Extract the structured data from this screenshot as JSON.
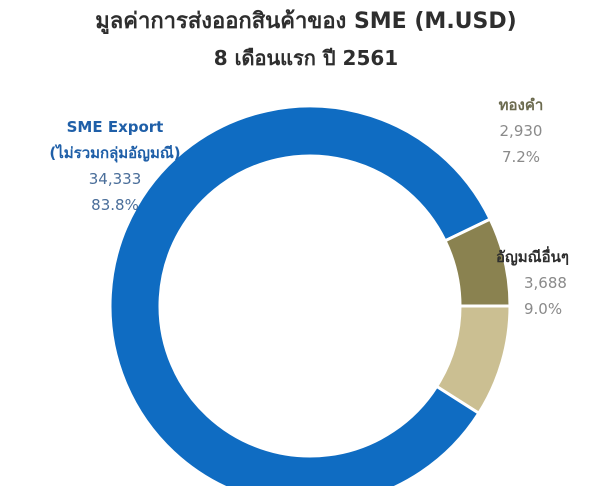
{
  "chart_data": {
    "type": "pie",
    "style": "donut",
    "title": "มูลค่าการส่งออกสินค้าของ SME (M.USD)",
    "subtitle": "8 เดือนแรก ปี 2561",
    "slices": [
      {
        "name_line1": "SME Export",
        "name_line2": "(ไม่รวมกลุ่มอัญมณี)",
        "value": 34333,
        "value_label": "34,333",
        "percent": "83.8%",
        "color": "#0f6cc2"
      },
      {
        "name_line1": "ทองคำ",
        "name_line2": "",
        "value": 2930,
        "value_label": "2,930",
        "percent": "7.2%",
        "color": "#8a8250"
      },
      {
        "name_line1": "อัญมณีอื่นๆ",
        "name_line2": "",
        "value": 3688,
        "value_label": "3,688",
        "percent": "9.0%",
        "color": "#cbbf92"
      }
    ],
    "legend": "none",
    "grid": false
  }
}
